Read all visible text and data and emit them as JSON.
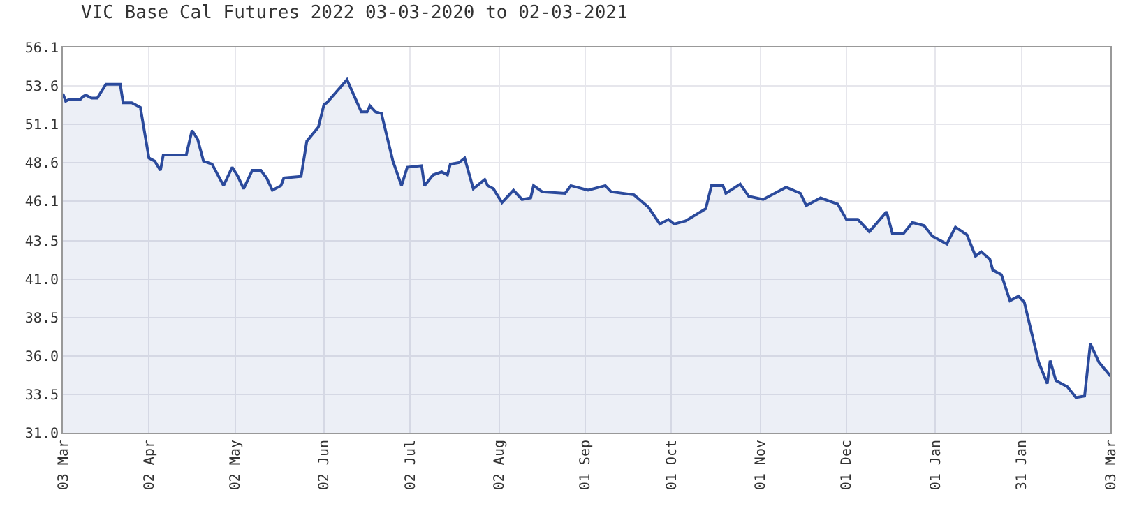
{
  "chart_data": {
    "type": "area",
    "title": "VIC Base Cal Futures 2022 03-03-2020 to 02-03-2021",
    "x": [
      "2020-03-03",
      "2020-03-04",
      "2020-03-05",
      "2020-03-09",
      "2020-03-10",
      "2020-03-11",
      "2020-03-13",
      "2020-03-15",
      "2020-03-18",
      "2020-03-23",
      "2020-03-24",
      "2020-03-27",
      "2020-03-30",
      "2020-04-02",
      "2020-04-04",
      "2020-04-06",
      "2020-04-07",
      "2020-04-15",
      "2020-04-17",
      "2020-04-19",
      "2020-04-21",
      "2020-04-24",
      "2020-04-28",
      "2020-05-01",
      "2020-05-03",
      "2020-05-05",
      "2020-05-08",
      "2020-05-11",
      "2020-05-13",
      "2020-05-15",
      "2020-05-18",
      "2020-05-19",
      "2020-05-25",
      "2020-05-27",
      "2020-05-31",
      "2020-06-02",
      "2020-06-03",
      "2020-06-10",
      "2020-06-15",
      "2020-06-17",
      "2020-06-18",
      "2020-06-20",
      "2020-06-22",
      "2020-06-26",
      "2020-06-29",
      "2020-07-01",
      "2020-07-06",
      "2020-07-07",
      "2020-07-10",
      "2020-07-13",
      "2020-07-15",
      "2020-07-16",
      "2020-07-19",
      "2020-07-21",
      "2020-07-24",
      "2020-07-28",
      "2020-07-29",
      "2020-07-31",
      "2020-08-03",
      "2020-08-07",
      "2020-08-10",
      "2020-08-13",
      "2020-08-14",
      "2020-08-17",
      "2020-08-25",
      "2020-08-27",
      "2020-09-02",
      "2020-09-08",
      "2020-09-10",
      "2020-09-18",
      "2020-09-23",
      "2020-09-27",
      "2020-09-30",
      "2020-10-02",
      "2020-10-06",
      "2020-10-13",
      "2020-10-15",
      "2020-10-19",
      "2020-10-20",
      "2020-10-25",
      "2020-10-28",
      "2020-11-02",
      "2020-11-10",
      "2020-11-15",
      "2020-11-17",
      "2020-11-22",
      "2020-11-28",
      "2020-12-01",
      "2020-12-05",
      "2020-12-09",
      "2020-12-15",
      "2020-12-17",
      "2020-12-21",
      "2020-12-24",
      "2020-12-28",
      "2020-12-31",
      "2021-01-05",
      "2021-01-08",
      "2021-01-12",
      "2021-01-15",
      "2021-01-17",
      "2021-01-20",
      "2021-01-21",
      "2021-01-24",
      "2021-01-27",
      "2021-01-30",
      "2021-02-01",
      "2021-02-06",
      "2021-02-09",
      "2021-02-10",
      "2021-02-12",
      "2021-02-16",
      "2021-02-19",
      "2021-02-22",
      "2021-02-24",
      "2021-02-27",
      "2021-03-03"
    ],
    "series": [
      {
        "color": "#2b4a9c",
        "values": [
          53.1,
          52.6,
          52.7,
          52.7,
          52.9,
          53.0,
          52.8,
          52.8,
          53.7,
          53.7,
          52.5,
          52.5,
          52.2,
          48.9,
          48.7,
          48.1,
          49.1,
          49.1,
          50.7,
          50.1,
          48.7,
          48.5,
          47.1,
          48.3,
          47.7,
          46.9,
          48.1,
          48.1,
          47.6,
          46.8,
          47.1,
          47.6,
          47.7,
          50.0,
          50.9,
          52.4,
          52.5,
          54.0,
          51.9,
          51.9,
          52.3,
          51.9,
          51.8,
          48.7,
          47.1,
          48.3,
          48.4,
          47.1,
          47.8,
          48.0,
          47.8,
          48.5,
          48.6,
          48.9,
          46.9,
          47.5,
          47.1,
          46.9,
          46.0,
          46.8,
          46.2,
          46.3,
          47.1,
          46.7,
          46.6,
          47.1,
          46.8,
          47.1,
          46.7,
          46.5,
          45.7,
          44.6,
          44.9,
          44.6,
          44.8,
          45.6,
          47.1,
          47.1,
          46.6,
          47.2,
          46.4,
          46.2,
          47.0,
          46.6,
          45.8,
          46.3,
          45.9,
          44.9,
          44.9,
          44.1,
          45.4,
          44.0,
          44.0,
          44.7,
          44.5,
          43.8,
          43.3,
          44.4,
          43.9,
          42.5,
          42.8,
          42.3,
          41.6,
          41.3,
          39.6,
          39.9,
          39.5,
          35.6,
          34.2,
          35.7,
          34.4,
          34.0,
          33.3,
          33.4,
          36.8,
          35.6,
          34.7
        ]
      }
    ],
    "xlim": [
      "2020-03-03",
      "2021-03-03"
    ],
    "xticks": [
      {
        "value": "2020-03-03",
        "label": "03 Mar"
      },
      {
        "value": "2020-04-02",
        "label": "02 Apr"
      },
      {
        "value": "2020-05-02",
        "label": "02 May"
      },
      {
        "value": "2020-06-02",
        "label": "02 Jun"
      },
      {
        "value": "2020-07-02",
        "label": "02 Jul"
      },
      {
        "value": "2020-08-02",
        "label": "02 Aug"
      },
      {
        "value": "2020-09-01",
        "label": "01 Sep"
      },
      {
        "value": "2020-10-01",
        "label": "01 Oct"
      },
      {
        "value": "2020-11-01",
        "label": "01 Nov"
      },
      {
        "value": "2020-12-01",
        "label": "01 Dec"
      },
      {
        "value": "2021-01-01",
        "label": "01 Jan"
      },
      {
        "value": "2021-01-31",
        "label": "31 Jan"
      },
      {
        "value": "2021-03-03",
        "label": "03 Mar"
      }
    ],
    "ylim": [
      31.0,
      56.1
    ],
    "yticks": [
      {
        "value": 31.0,
        "label": "31.0"
      },
      {
        "value": 33.5,
        "label": "33.5"
      },
      {
        "value": 36.0,
        "label": "36.0"
      },
      {
        "value": 38.5,
        "label": "38.5"
      },
      {
        "value": 41.0,
        "label": "41.0"
      },
      {
        "value": 43.5,
        "label": "43.5"
      },
      {
        "value": 46.1,
        "label": "46.1"
      },
      {
        "value": 48.6,
        "label": "48.6"
      },
      {
        "value": 51.1,
        "label": "51.1"
      },
      {
        "value": 53.6,
        "label": "53.6"
      },
      {
        "value": 56.1,
        "label": "56.1"
      }
    ],
    "grid": true
  }
}
